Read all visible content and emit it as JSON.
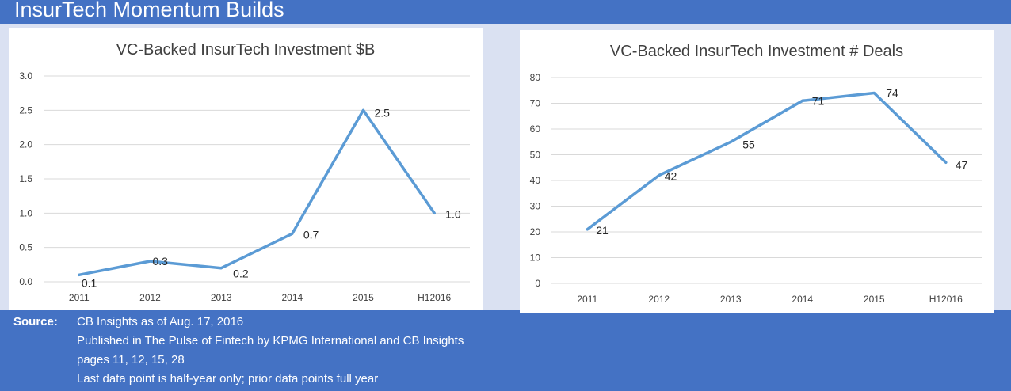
{
  "page": {
    "title": "InsurTech Momentum Builds"
  },
  "chart_data": [
    {
      "type": "line",
      "title": "VC-Backed InsurTech Investment $B",
      "categories": [
        "2011",
        "2012",
        "2013",
        "2014",
        "2015",
        "H12016"
      ],
      "values": [
        0.1,
        0.3,
        0.2,
        0.7,
        2.5,
        1.0
      ],
      "value_labels": [
        "0.1",
        "0.3",
        "0.2",
        "0.7",
        "2.5",
        "1.0"
      ],
      "yticks": [
        "0.0",
        "0.5",
        "1.0",
        "1.5",
        "2.0",
        "2.5",
        "3.0"
      ],
      "ylim": [
        0,
        3
      ],
      "xlabel": "",
      "ylabel": "",
      "grid": true,
      "series_color": "#5b9bd5"
    },
    {
      "type": "line",
      "title": "VC-Backed InsurTech Investment # Deals",
      "categories": [
        "2011",
        "2012",
        "2013",
        "2014",
        "2015",
        "H12016"
      ],
      "values": [
        21,
        42,
        55,
        71,
        74,
        47
      ],
      "value_labels": [
        "21",
        "42",
        "55",
        "71",
        "74",
        "47"
      ],
      "yticks": [
        "0",
        "10",
        "20",
        "30",
        "40",
        "50",
        "60",
        "70",
        "80"
      ],
      "ylim": [
        0,
        80
      ],
      "xlabel": "",
      "ylabel": "",
      "grid": true,
      "series_color": "#5b9bd5"
    }
  ],
  "source": {
    "label": "Source:",
    "lines": [
      "CB Insights as of Aug. 17, 2016",
      "Published in The Pulse of Fintech by KPMG International and CB Insights",
      "pages 11, 12, 15, 28",
      "Last data point is half-year only; prior data points full year"
    ]
  }
}
